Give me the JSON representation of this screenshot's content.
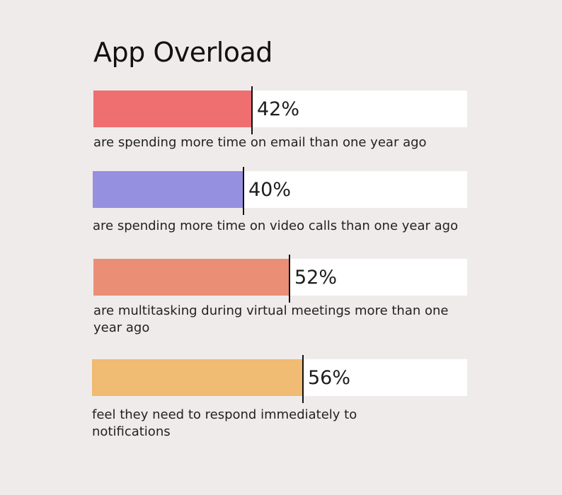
{
  "chart_data": {
    "type": "bar",
    "orientation": "horizontal",
    "title": "App Overload",
    "xlim": [
      0,
      100
    ],
    "unit": "%",
    "categories": [
      "are spending more time on email than one year ago",
      "are spending more time on video calls than one year ago",
      "are multitasking during virtual meetings more than one year ago",
      "feel they need to respond immediately to notifications"
    ],
    "values": [
      42,
      40,
      52,
      56
    ],
    "value_labels": [
      "42%",
      "40%",
      "52%",
      "56%"
    ],
    "colors": [
      "#ef6e6f",
      "#9590e0",
      "#ea8e76",
      "#f0bb72"
    ],
    "track_color": "#ffffff",
    "grid": false,
    "legend": "none"
  }
}
